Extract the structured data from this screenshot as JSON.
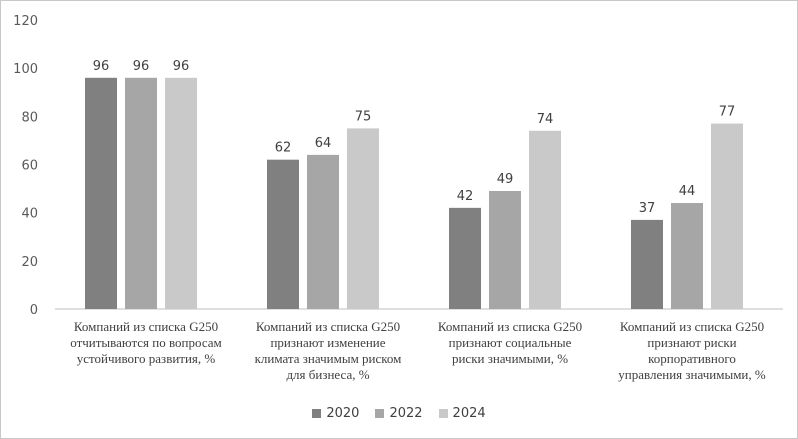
{
  "chart_data": {
    "type": "bar",
    "title": "",
    "xlabel": "",
    "ylabel": "",
    "ylim": [
      0,
      120
    ],
    "yticks": [
      0,
      20,
      40,
      60,
      80,
      100,
      120
    ],
    "grid": false,
    "legend_position": "bottom",
    "categories": [
      "Компаний из списка G250 отчитываются по вопросам устойчивого развития, %",
      "Компаний из списка G250 признают изменение климата значимым риском для бизнеса, %",
      "Компаний из списка G250 признают социальные риски значимыми, %",
      "Компаний из списка G250 признают риски корпоративного управления значимыми, %"
    ],
    "category_lines": [
      [
        "Компаний из списка G250",
        "отчитываются по вопросам",
        "устойчивого развития, %"
      ],
      [
        "Компаний из списка G250",
        "признают изменение",
        "климата значимым риском",
        "для бизнеса, %"
      ],
      [
        "Компаний из списка G250",
        "признают социальные",
        "риски значимыми, %"
      ],
      [
        "Компаний из списка G250",
        "признают риски",
        "корпоративного",
        "управления значимыми, %"
      ]
    ],
    "series": [
      {
        "name": "2020",
        "color": "#808080",
        "values": [
          96,
          62,
          42,
          37
        ]
      },
      {
        "name": "2022",
        "color": "#a6a6a6",
        "values": [
          96,
          64,
          49,
          44
        ]
      },
      {
        "name": "2024",
        "color": "#c9c9c9",
        "values": [
          96,
          75,
          74,
          77
        ]
      }
    ]
  }
}
